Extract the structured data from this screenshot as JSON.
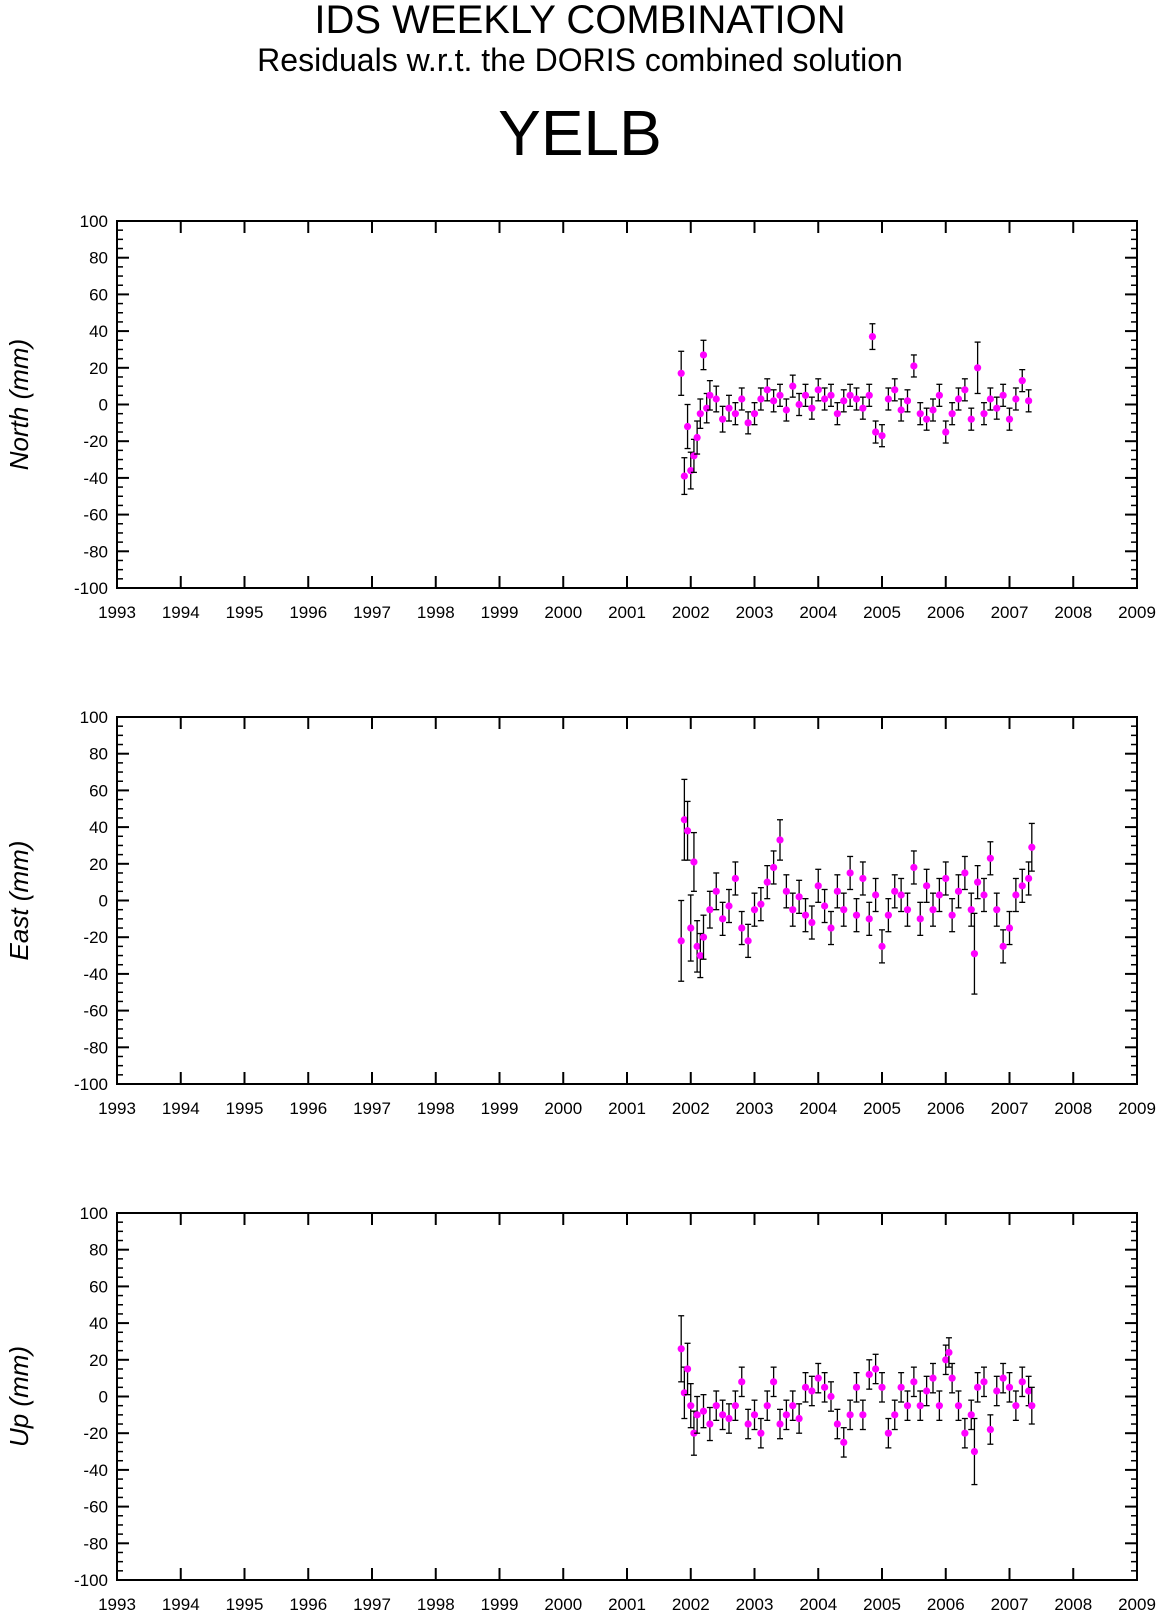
{
  "header": {
    "title": "IDS WEEKLY COMBINATION",
    "subtitle": "Residuals w.r.t. the DORIS combined solution",
    "station": "YELB"
  },
  "colors": {
    "marker": "#ff00ff",
    "errorbar": "#000000",
    "axis": "#000000"
  },
  "chart_data": [
    {
      "type": "scatter",
      "ylabel": "North (mm)",
      "xlim": [
        1993,
        2009
      ],
      "ylim": [
        -100,
        100
      ],
      "x_ticks": [
        "1993",
        "1994",
        "1995",
        "1996",
        "1997",
        "1998",
        "1999",
        "2000",
        "2001",
        "2002",
        "2003",
        "2004",
        "2005",
        "2006",
        "2007",
        "2008",
        "2009"
      ],
      "y_ticks": [
        "100",
        "80",
        "60",
        "40",
        "20",
        "0",
        "-20",
        "-40",
        "-60",
        "-80",
        "-100"
      ],
      "series": [
        {
          "x": [
            2001.85,
            2001.9,
            2001.95,
            2002.0,
            2002.05,
            2002.1,
            2002.15,
            2002.2,
            2002.25,
            2002.3,
            2002.4,
            2002.5,
            2002.6,
            2002.7,
            2002.8,
            2002.9,
            2003.0,
            2003.1,
            2003.2,
            2003.3,
            2003.4,
            2003.5,
            2003.6,
            2003.7,
            2003.8,
            2003.9,
            2004.0,
            2004.1,
            2004.2,
            2004.3,
            2004.4,
            2004.5,
            2004.6,
            2004.7,
            2004.8,
            2004.85,
            2004.9,
            2005.0,
            2005.1,
            2005.2,
            2005.3,
            2005.4,
            2005.5,
            2005.6,
            2005.7,
            2005.8,
            2005.9,
            2006.0,
            2006.1,
            2006.2,
            2006.3,
            2006.4,
            2006.5,
            2006.6,
            2006.7,
            2006.8,
            2006.9,
            2007.0,
            2007.1,
            2007.2,
            2007.3
          ],
          "y": [
            17,
            -39,
            -12,
            -36,
            -28,
            -18,
            -5,
            27,
            -2,
            5,
            3,
            -8,
            -2,
            -5,
            3,
            -10,
            -5,
            3,
            8,
            2,
            5,
            -3,
            10,
            0,
            5,
            -2,
            8,
            3,
            5,
            -5,
            2,
            5,
            3,
            -2,
            5,
            37,
            -15,
            -17,
            3,
            8,
            -3,
            2,
            21,
            -5,
            -8,
            -3,
            5,
            -15,
            -5,
            3,
            8,
            -8,
            20,
            -5,
            3,
            -2,
            5,
            -8,
            3,
            13,
            2
          ],
          "err": [
            12,
            10,
            12,
            10,
            9,
            9,
            8,
            8,
            8,
            8,
            7,
            7,
            7,
            6,
            6,
            6,
            6,
            6,
            6,
            6,
            6,
            6,
            6,
            6,
            6,
            6,
            6,
            6,
            6,
            6,
            6,
            6,
            6,
            6,
            6,
            7,
            6,
            6,
            6,
            6,
            6,
            6,
            6,
            6,
            6,
            6,
            6,
            6,
            6,
            6,
            6,
            6,
            14,
            6,
            6,
            6,
            6,
            6,
            6,
            6,
            6
          ]
        }
      ]
    },
    {
      "type": "scatter",
      "ylabel": "East (mm)",
      "xlim": [
        1993,
        2009
      ],
      "ylim": [
        -100,
        100
      ],
      "x_ticks": [
        "1993",
        "1994",
        "1995",
        "1996",
        "1997",
        "1998",
        "1999",
        "2000",
        "2001",
        "2002",
        "2003",
        "2004",
        "2005",
        "2006",
        "2007",
        "2008",
        "2009"
      ],
      "y_ticks": [
        "100",
        "80",
        "60",
        "40",
        "20",
        "0",
        "-20",
        "-40",
        "-60",
        "-80",
        "-100"
      ],
      "series": [
        {
          "x": [
            2001.85,
            2001.9,
            2001.95,
            2002.0,
            2002.05,
            2002.1,
            2002.15,
            2002.2,
            2002.3,
            2002.4,
            2002.5,
            2002.6,
            2002.7,
            2002.8,
            2002.9,
            2003.0,
            2003.1,
            2003.2,
            2003.3,
            2003.4,
            2003.5,
            2003.6,
            2003.7,
            2003.8,
            2003.9,
            2004.0,
            2004.1,
            2004.2,
            2004.3,
            2004.4,
            2004.5,
            2004.6,
            2004.7,
            2004.8,
            2004.9,
            2005.0,
            2005.1,
            2005.2,
            2005.3,
            2005.4,
            2005.5,
            2005.6,
            2005.7,
            2005.8,
            2005.9,
            2006.0,
            2006.1,
            2006.2,
            2006.3,
            2006.4,
            2006.45,
            2006.5,
            2006.6,
            2006.7,
            2006.8,
            2006.9,
            2007.0,
            2007.1,
            2007.2,
            2007.3,
            2007.35
          ],
          "y": [
            -22,
            44,
            38,
            -15,
            21,
            -25,
            -30,
            -20,
            -5,
            5,
            -10,
            -3,
            12,
            -15,
            -22,
            -5,
            -2,
            10,
            18,
            33,
            5,
            -5,
            2,
            -8,
            -12,
            8,
            -3,
            -15,
            5,
            -5,
            15,
            -8,
            12,
            -10,
            3,
            -25,
            -8,
            5,
            3,
            -5,
            18,
            -10,
            8,
            -5,
            3,
            12,
            -8,
            5,
            15,
            -5,
            -29,
            10,
            3,
            23,
            -5,
            -25,
            -15,
            3,
            8,
            12,
            29
          ],
          "err": [
            22,
            22,
            16,
            18,
            16,
            14,
            12,
            12,
            10,
            10,
            9,
            9,
            9,
            9,
            9,
            9,
            9,
            9,
            9,
            11,
            9,
            9,
            9,
            9,
            9,
            9,
            9,
            9,
            9,
            9,
            9,
            9,
            9,
            9,
            9,
            9,
            9,
            9,
            9,
            9,
            9,
            9,
            9,
            9,
            9,
            9,
            9,
            9,
            9,
            9,
            22,
            9,
            9,
            9,
            9,
            9,
            9,
            9,
            9,
            9,
            13
          ]
        }
      ]
    },
    {
      "type": "scatter",
      "ylabel": "Up (mm)",
      "xlim": [
        1993,
        2009
      ],
      "ylim": [
        -100,
        100
      ],
      "x_ticks": [
        "1993",
        "1994",
        "1995",
        "1996",
        "1997",
        "1998",
        "1999",
        "2000",
        "2001",
        "2002",
        "2003",
        "2004",
        "2005",
        "2006",
        "2007",
        "2008",
        "2009"
      ],
      "y_ticks": [
        "100",
        "80",
        "60",
        "40",
        "20",
        "0",
        "-20",
        "-40",
        "-60",
        "-80",
        "-100"
      ],
      "series": [
        {
          "x": [
            2001.85,
            2001.9,
            2001.95,
            2002.0,
            2002.05,
            2002.1,
            2002.2,
            2002.3,
            2002.4,
            2002.5,
            2002.6,
            2002.7,
            2002.8,
            2002.9,
            2003.0,
            2003.1,
            2003.2,
            2003.3,
            2003.4,
            2003.5,
            2003.6,
            2003.7,
            2003.8,
            2003.9,
            2004.0,
            2004.1,
            2004.2,
            2004.3,
            2004.4,
            2004.5,
            2004.6,
            2004.7,
            2004.8,
            2004.9,
            2005.0,
            2005.1,
            2005.2,
            2005.3,
            2005.4,
            2005.5,
            2005.6,
            2005.7,
            2005.8,
            2005.9,
            2006.0,
            2006.05,
            2006.1,
            2006.2,
            2006.3,
            2006.4,
            2006.45,
            2006.5,
            2006.6,
            2006.7,
            2006.8,
            2006.9,
            2007.0,
            2007.1,
            2007.2,
            2007.3,
            2007.35
          ],
          "y": [
            26,
            2,
            15,
            -5,
            -20,
            -10,
            -8,
            -15,
            -5,
            -10,
            -12,
            -5,
            8,
            -15,
            -10,
            -20,
            -5,
            8,
            -15,
            -10,
            -5,
            -12,
            5,
            3,
            10,
            5,
            0,
            -15,
            -25,
            -10,
            5,
            -10,
            12,
            15,
            5,
            -20,
            -10,
            5,
            -5,
            8,
            -5,
            3,
            10,
            -5,
            20,
            24,
            10,
            -5,
            -20,
            -10,
            -30,
            5,
            8,
            -18,
            3,
            10,
            5,
            -5,
            8,
            3,
            -5
          ],
          "err": [
            18,
            14,
            14,
            12,
            12,
            10,
            9,
            9,
            8,
            8,
            8,
            8,
            8,
            8,
            8,
            8,
            8,
            8,
            8,
            8,
            8,
            8,
            8,
            8,
            8,
            8,
            8,
            8,
            8,
            8,
            8,
            8,
            8,
            8,
            8,
            8,
            8,
            8,
            8,
            8,
            8,
            8,
            8,
            8,
            8,
            8,
            8,
            8,
            8,
            8,
            18,
            8,
            8,
            8,
            8,
            8,
            8,
            8,
            8,
            8,
            10
          ]
        }
      ]
    }
  ]
}
